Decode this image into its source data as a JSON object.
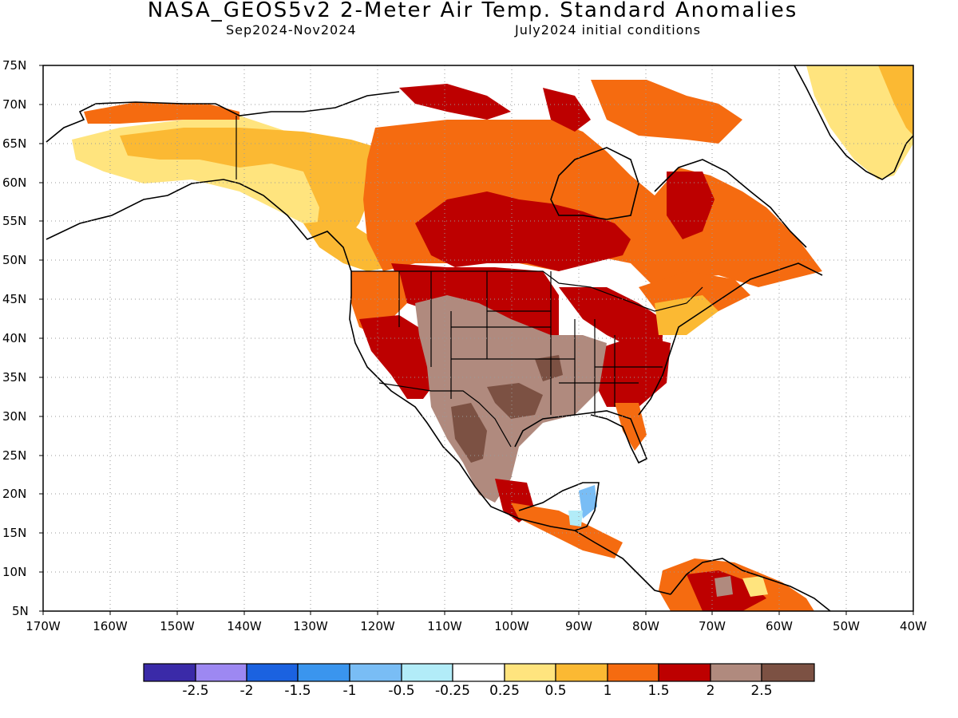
{
  "title": "NASA_GEOS5v2 2-Meter Air Temp. Standard Anomalies",
  "subtitle_left": "Sep2024-Nov2024",
  "subtitle_right": "July2024 initial conditions",
  "lat_labels": [
    "75N",
    "70N",
    "65N",
    "60N",
    "55N",
    "50N",
    "45N",
    "40N",
    "35N",
    "30N",
    "25N",
    "20N",
    "15N",
    "10N",
    "5N"
  ],
  "lon_labels": [
    "170W",
    "160W",
    "150W",
    "140W",
    "130W",
    "120W",
    "110W",
    "100W",
    "90W",
    "80W",
    "70W",
    "60W",
    "50W",
    "40W"
  ],
  "map": {
    "lon_range": [
      -170,
      -40
    ],
    "lat_range": [
      5,
      75
    ],
    "grid": "dotted",
    "projection": "cylindrical"
  },
  "colorbar": {
    "colors": [
      "#3a2aa8",
      "#9d88f2",
      "#1b62e0",
      "#3a95ee",
      "#79bdf5",
      "#b2ecf8",
      "#ffffff",
      "#ffe47e",
      "#fbb933",
      "#f56b10",
      "#bd0000",
      "#b08a7e",
      "#7c5143"
    ],
    "labels": [
      "-2.5",
      "-2",
      "-1.5",
      "-1",
      "-0.5",
      "-0.25",
      "0.25",
      "0.5",
      "1",
      "1.5",
      "2",
      "2.5"
    ]
  },
  "colors": {
    "very_warm": "#bd0000",
    "warm": "#f56b10",
    "mild_warm": "#fbb933",
    "slight_warm": "#ffe47e",
    "extreme_1": "#b08a7e",
    "extreme_2": "#7c5143",
    "cool_1": "#79bdf5",
    "cool_2": "#b2ecf8"
  }
}
